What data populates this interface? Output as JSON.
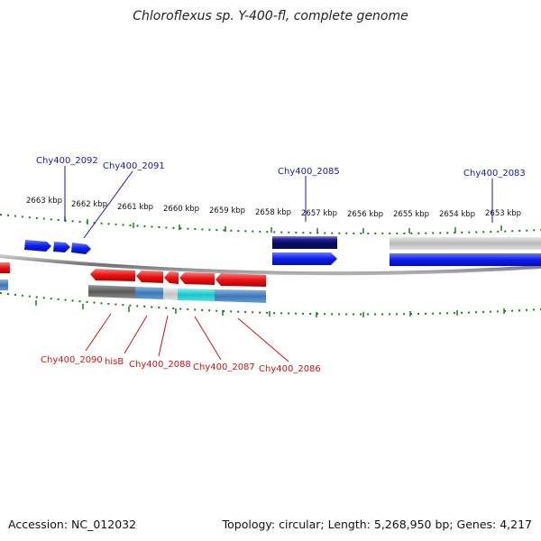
{
  "title": "Chloroflexus sp. Y-400-fl, complete genome",
  "footer": {
    "accession": "Accession: NC_012032",
    "info": "Topology: circular; Length: 5,268,950 bp; Genes: 4,217"
  },
  "colors": {
    "forward_gene": "#0a1ef0",
    "reverse_gene": "#ee1111",
    "forward_label": "#1a1aa8",
    "reverse_label": "#cc1414",
    "tick": "#1f7a1f",
    "backbone": "#8a8a8a"
  },
  "ticks": [
    {
      "label": "2663 kbp"
    },
    {
      "label": "2662 kbp"
    },
    {
      "label": "2661 kbp"
    },
    {
      "label": "2660 kbp"
    },
    {
      "label": "2659 kbp"
    },
    {
      "label": "2658 kbp"
    },
    {
      "label": "2657 kbp"
    },
    {
      "label": "2656 kbp"
    },
    {
      "label": "2655 kbp"
    },
    {
      "label": "2654 kbp"
    },
    {
      "label": "2653 kbp"
    }
  ],
  "forward_labels": [
    {
      "text": "Chy400_2092"
    },
    {
      "text": "Chy400_2091"
    },
    {
      "text": "Chy400_2085"
    },
    {
      "text": "Chy400_2083"
    }
  ],
  "reverse_labels": [
    {
      "text": "Chy400_2090"
    },
    {
      "text": "hisB"
    },
    {
      "text": "Chy400_2088"
    },
    {
      "text": "Chy400_2087"
    },
    {
      "text": "Chy400_2086"
    }
  ]
}
